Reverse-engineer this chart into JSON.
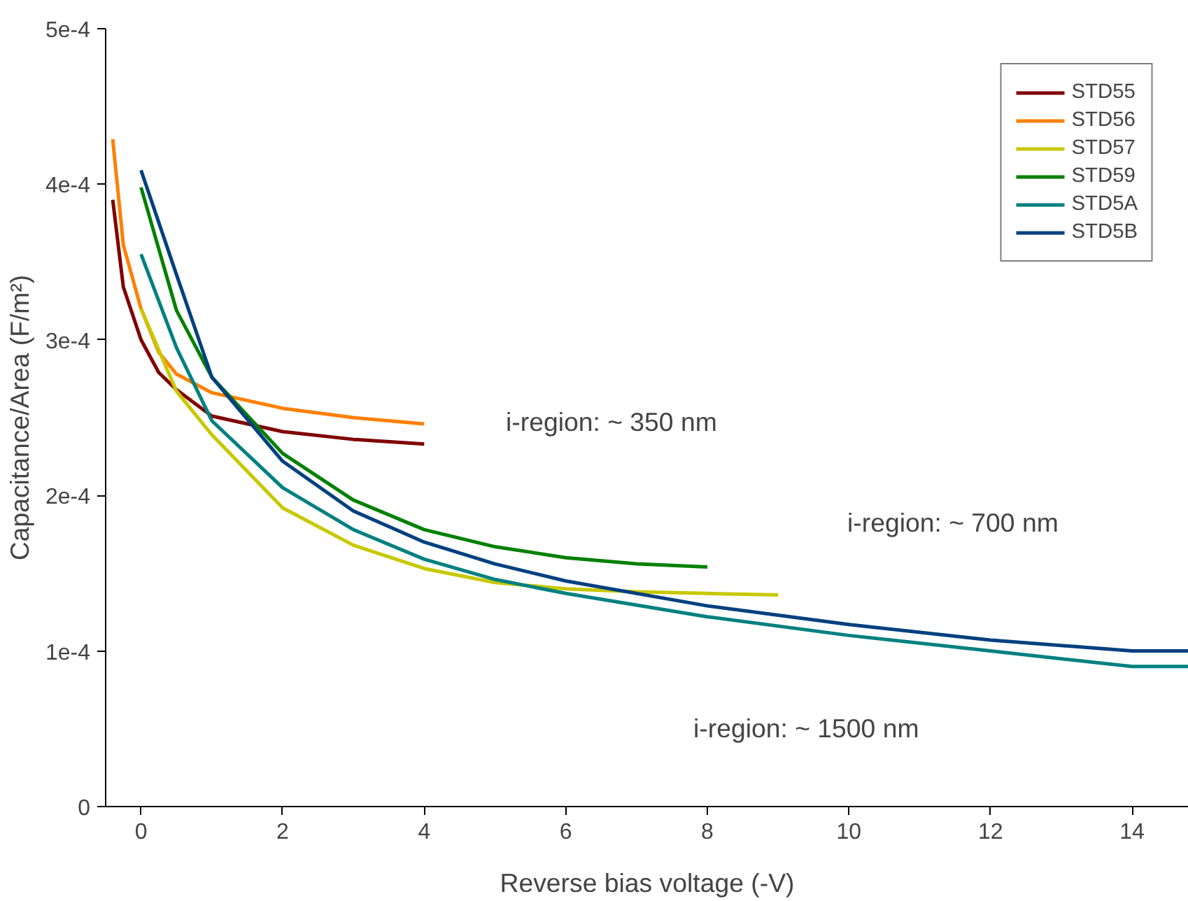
{
  "chart_data": {
    "type": "line",
    "xlabel": "Reverse bias voltage (-V)",
    "ylabel": "Capacitance/Area (F/m²)",
    "xlim": [
      -0.5,
      14.8
    ],
    "xticks": [
      0,
      2,
      4,
      6,
      8,
      10,
      12,
      14
    ],
    "ylim": [
      0,
      0.0005
    ],
    "yticks": [
      0,
      {
        "value": 0.0001,
        "label": "1e-4"
      },
      {
        "value": 0.0002,
        "label": "2e-4"
      },
      {
        "value": 0.0003,
        "label": "3e-4"
      },
      {
        "value": 0.0004,
        "label": "4e-4"
      },
      {
        "value": 0.0005,
        "label": "5e-4"
      }
    ],
    "grid": false,
    "legend": "top right",
    "marker": "none",
    "line_style": "solid",
    "series": [
      {
        "name": "STD55",
        "color": "#800000",
        "x": [
          -0.4,
          -0.25,
          0,
          0.25,
          0.5,
          1,
          2,
          3,
          4
        ],
        "values": [
          0.00039,
          0.000334,
          0.0003,
          0.000279,
          0.000268,
          0.000251,
          0.000241,
          0.000236,
          0.000233
        ]
      },
      {
        "name": "STD56",
        "color": "#ff8000",
        "x": [
          -0.4,
          -0.25,
          0,
          0.25,
          0.5,
          1,
          2,
          3,
          4
        ],
        "values": [
          0.000429,
          0.000361,
          0.00032,
          0.000292,
          0.000278,
          0.000266,
          0.000256,
          0.00025,
          0.000246
        ]
      },
      {
        "name": "STD57",
        "color": "#c8c800",
        "x": [
          0,
          0.5,
          1,
          2,
          3,
          4,
          5,
          6,
          7,
          8,
          9
        ],
        "values": [
          0.00032,
          0.000267,
          0.000239,
          0.000192,
          0.000168,
          0.000153,
          0.000144,
          0.00014,
          0.000138,
          0.000137,
          0.000136
        ]
      },
      {
        "name": "STD59",
        "color": "#008000",
        "x": [
          0,
          0.5,
          1,
          2,
          3,
          4,
          5,
          6,
          7,
          8
        ],
        "values": [
          0.000398,
          0.000319,
          0.000276,
          0.000227,
          0.000197,
          0.000178,
          0.000167,
          0.00016,
          0.000156,
          0.000154
        ]
      },
      {
        "name": "STD5A",
        "color": "#008080",
        "x": [
          0,
          0.5,
          1,
          2,
          3,
          4,
          5,
          6,
          8,
          10,
          12,
          14,
          14.8
        ],
        "values": [
          0.000355,
          0.000295,
          0.000248,
          0.000205,
          0.000178,
          0.000159,
          0.000146,
          0.000137,
          0.000122,
          0.00011,
          0.0001,
          9e-05,
          9e-05
        ]
      },
      {
        "name": "STD5B",
        "color": "#004080",
        "x": [
          0,
          0.5,
          1,
          2,
          3,
          4,
          5,
          6,
          8,
          10,
          12,
          14,
          14.8
        ],
        "values": [
          0.000409,
          0.000342,
          0.000276,
          0.000222,
          0.00019,
          0.00017,
          0.000156,
          0.000145,
          0.000129,
          0.000117,
          0.000107,
          0.0001,
          0.0001
        ]
      }
    ],
    "annotations": [
      "i-region: ~ 350 nm",
      "i-region: ~ 700 nm",
      "i-region: ~ 1500 nm"
    ]
  }
}
